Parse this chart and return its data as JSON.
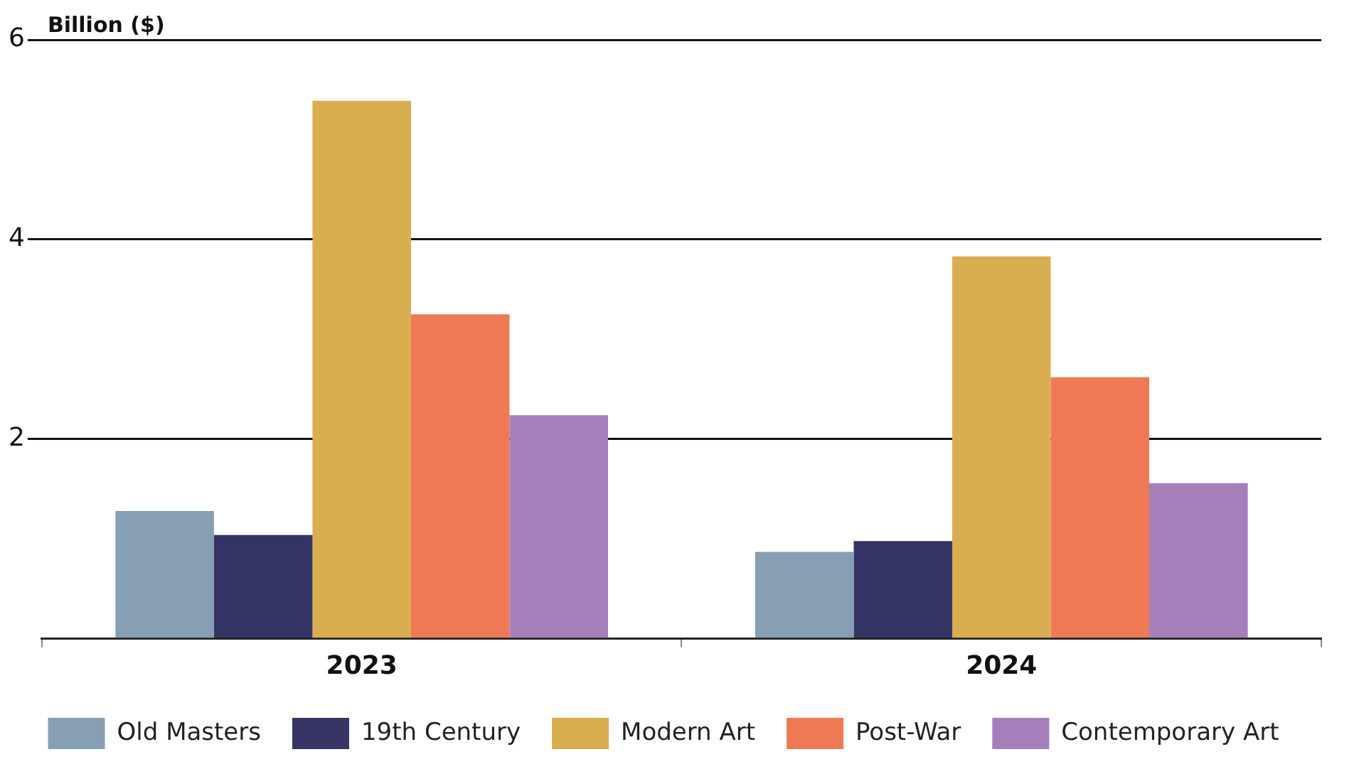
{
  "chart_data": {
    "type": "bar",
    "ylabel": "Billion ($)",
    "categories": [
      "2023",
      "2024"
    ],
    "series": [
      {
        "name": "Old Masters",
        "color": "#869fb3",
        "values": [
          1.28,
          0.87
        ]
      },
      {
        "name": "19th Century",
        "color": "#343465",
        "values": [
          1.04,
          0.98
        ]
      },
      {
        "name": "Modern Art",
        "color": "#d9ae50",
        "values": [
          5.39,
          3.83
        ]
      },
      {
        "name": "Post-War",
        "color": "#ef7855",
        "values": [
          3.25,
          2.62
        ]
      },
      {
        "name": "Contemporary Art",
        "color": "#a67fba",
        "values": [
          2.24,
          1.56
        ]
      }
    ],
    "ylim": [
      0,
      6
    ],
    "yticks": [
      {
        "value": 0,
        "label": null
      },
      2,
      4,
      6
    ],
    "grid": "y",
    "legend": "bottom"
  }
}
